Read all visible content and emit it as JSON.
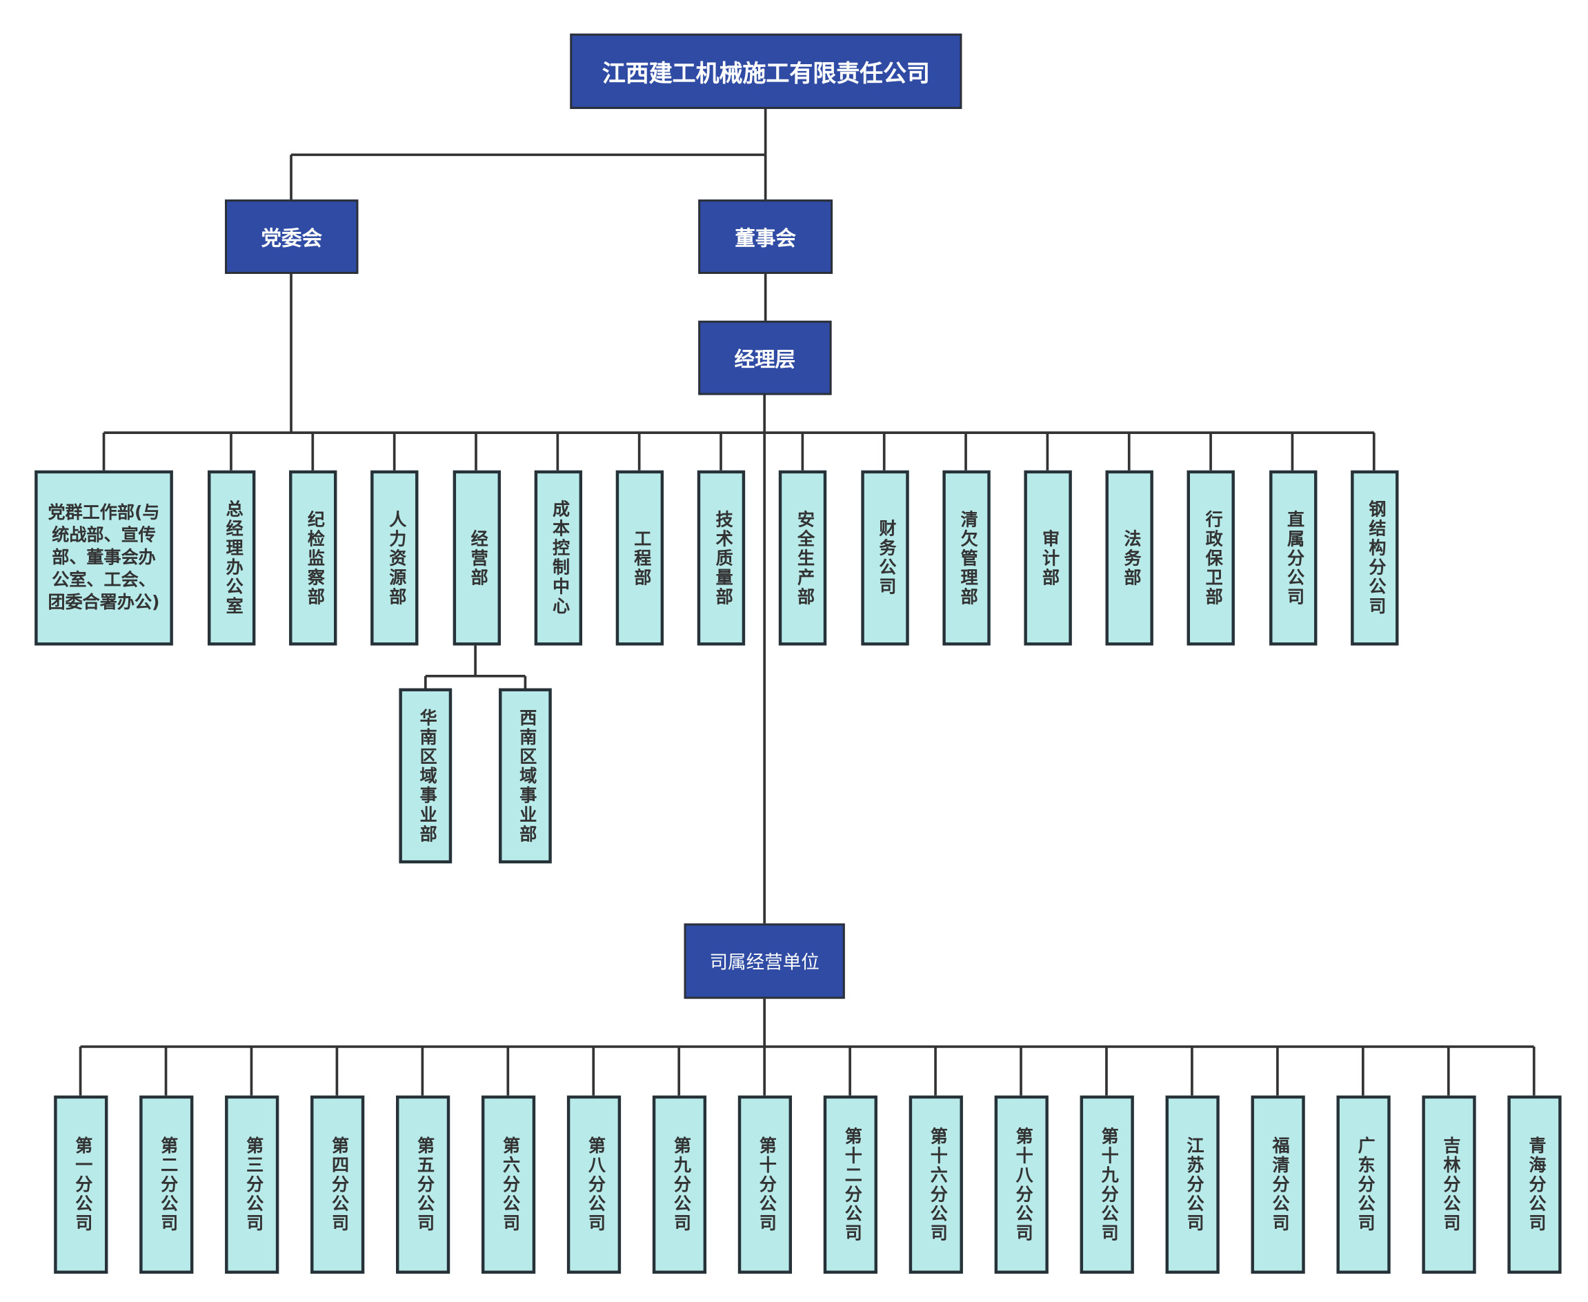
{
  "root": "江西建工机械施工有限责任公司",
  "party": "党委会",
  "board": "董事会",
  "management": "经理层",
  "units": "司属经营单位",
  "departments": [
    "党群工作部(与统战部、宣传部、董事会办公室、工会、团委合署办公)",
    "总经理办公室",
    "纪检监察部",
    "人力资源部",
    "经营部",
    "成本控制中心",
    "工程部",
    "技术质量部",
    "安全生产部",
    "财务公司",
    "清欠管理部",
    "审计部",
    "法务部",
    "行政保卫部",
    "直属分公司",
    "钢结构分公司"
  ],
  "sub_departments": [
    "华南区域事业部",
    "西南区域事业部"
  ],
  "branches": [
    "第一分公司",
    "第二分公司",
    "第三分公司",
    "第四分公司",
    "第五分公司",
    "第六分公司",
    "第八分公司",
    "第九分公司",
    "第十分公司",
    "第十二分公司",
    "第十六分公司",
    "第十八分公司",
    "第十九分公司",
    "江苏分公司",
    "福清分公司",
    "广东分公司",
    "吉林分公司",
    "青海分公司"
  ],
  "colors": {
    "dark_box": "#2f4ba3",
    "light_box": "#b8eaea",
    "line": "#333333"
  }
}
